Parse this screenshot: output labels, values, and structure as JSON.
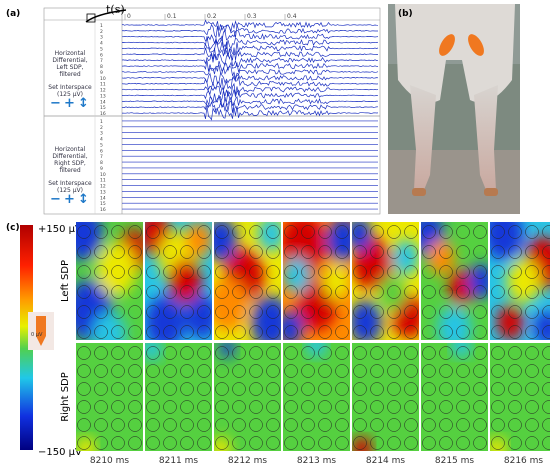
{
  "panel_labels": [
    "(a)",
    "(b)",
    "(c)"
  ],
  "panel_a": {
    "time_axis_label": "t(s)",
    "time_ticks": [
      "0",
      "0.1",
      "0.2",
      "0.3",
      "0.4"
    ],
    "groups": [
      {
        "label": "Horizontal Differential, Left SDP, filtered",
        "interspace": "Set Interspace (125 µV)",
        "controls": [
          "−",
          "+",
          "↕"
        ],
        "channels": [
          "1",
          "2",
          "3",
          "4",
          "5",
          "6",
          "7",
          "8",
          "9",
          "10",
          "11",
          "12",
          "13",
          "14",
          "15",
          "16"
        ]
      },
      {
        "label": "Horizontal Differential, Right SDP, filtered",
        "interspace": "Set Interspace (125 µV)",
        "controls": [
          "−",
          "+",
          "↕"
        ],
        "channels": [
          "1",
          "2",
          "3",
          "4",
          "5",
          "6",
          "7",
          "8",
          "9",
          "10",
          "11",
          "12",
          "13",
          "14",
          "15",
          "16"
        ]
      }
    ]
  },
  "panel_c": {
    "colorbar": {
      "max": "+150 µV",
      "mid": "0 µV",
      "min": "−150 µV"
    },
    "rows": [
      "Left SDP",
      "Right SDP"
    ],
    "times": [
      "8210 ms",
      "8211 ms",
      "8212 ms",
      "8213 ms",
      "8214 ms",
      "8215 ms",
      "8216 ms"
    ]
  }
}
